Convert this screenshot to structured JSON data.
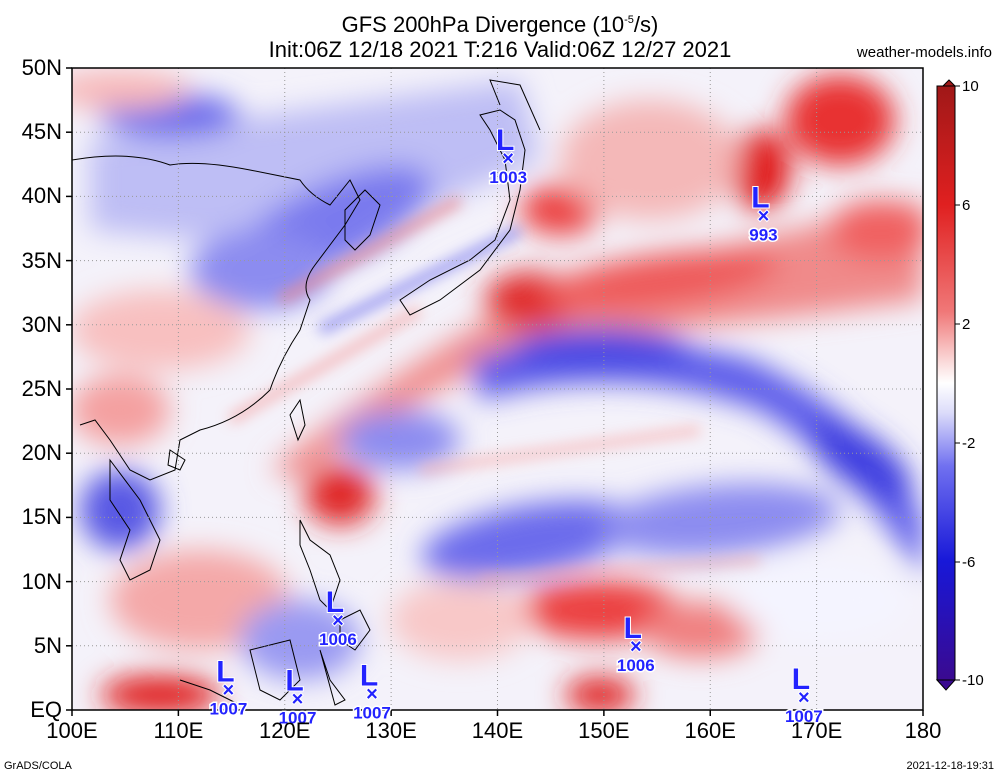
{
  "header": {
    "title_prefix": "GFS 200hPa Divergence (10",
    "title_exp": "-5",
    "title_suffix": "/s)",
    "subtitle": "Init:06Z 12/18 2021 T:216 Valid:06Z 12/27 2021",
    "site": "weather-models.info"
  },
  "footer": {
    "left": "GrADS/COLA",
    "right": "2021-12-18-19:31"
  },
  "map": {
    "lon_range": [
      100,
      180
    ],
    "lat_range": [
      0,
      50
    ],
    "lat_labels": [
      "EQ",
      "5N",
      "10N",
      "15N",
      "20N",
      "25N",
      "30N",
      "35N",
      "40N",
      "45N",
      "50N"
    ],
    "lon_labels": [
      "100E",
      "110E",
      "120E",
      "130E",
      "140E",
      "150E",
      "160E",
      "170E",
      "180"
    ],
    "grid": "dotted"
  },
  "colorbar": {
    "labels": [
      "10",
      "6",
      "2",
      "-2",
      "-6",
      "-10"
    ],
    "colors": [
      "#a01818",
      "#e02020",
      "#f07070",
      "#f8c8c8",
      "#ffffff",
      "#c8c8f8",
      "#6a6af0",
      "#1818d8",
      "#3a0a90"
    ]
  },
  "lows": [
    {
      "lon": 141,
      "lat": 43,
      "pressure": "1003"
    },
    {
      "lon": 165,
      "lat": 38.5,
      "pressure": "993"
    },
    {
      "lon": 125,
      "lat": 7,
      "pressure": "1006"
    },
    {
      "lon": 153,
      "lat": 5,
      "pressure": "1006"
    },
    {
      "lon": 114.7,
      "lat": 1.6,
      "pressure": "1007"
    },
    {
      "lon": 121.2,
      "lat": 0.9,
      "pressure": "1007"
    },
    {
      "lon": 128.2,
      "lat": 1.3,
      "pressure": "1007"
    },
    {
      "lon": 168.8,
      "lat": 1.0,
      "pressure": "1007"
    }
  ]
}
